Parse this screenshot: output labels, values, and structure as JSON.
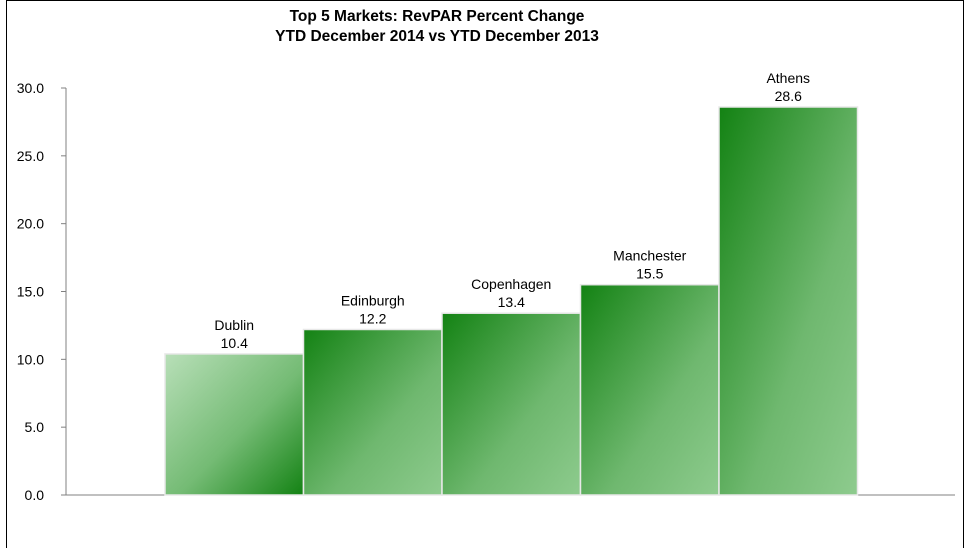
{
  "chart_data": {
    "type": "bar",
    "title": "Top 5 Markets: RevPAR Percent Change",
    "subtitle": "YTD December 2014 vs YTD December 2013",
    "categories": [
      "Dublin",
      "Edinburgh",
      "Copenhagen",
      "Manchester",
      "Athens"
    ],
    "values": [
      10.4,
      12.2,
      13.4,
      15.5,
      28.6
    ],
    "value_labels": [
      "10.4",
      "12.2",
      "13.4",
      "15.5",
      "28.6"
    ],
    "ylim": [
      0,
      30
    ],
    "yticks": [
      "0.0",
      "5.0",
      "10.0",
      "15.0",
      "20.0",
      "25.0",
      "30.0"
    ],
    "xlabel": "",
    "ylabel": "",
    "grid": false,
    "legend": "none",
    "colors": {
      "bar_dark": "#138213",
      "bar_light": "#86c586",
      "bar_pale": "#b3dcb3",
      "bar_border": "#e8e8e8"
    }
  }
}
